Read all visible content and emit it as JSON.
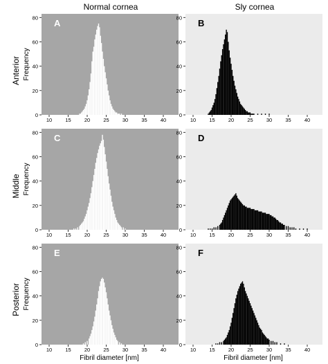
{
  "figure": {
    "col_titles": [
      "Normal cornea",
      "Sly cornea"
    ],
    "row_labels": [
      "Anterior",
      "Middle",
      "Posterior"
    ],
    "ylabel": "Frequency",
    "xlabel": "Fibril diameter [nm]",
    "x_ticks": [
      "10",
      "15",
      "20",
      "25",
      "30",
      "35",
      "40"
    ],
    "y_ticks": [
      "0",
      "20",
      "40",
      "60",
      "80"
    ],
    "colors": {
      "normal_background": "#a6a6a6",
      "normal_bars": "#ffffff",
      "sly_background": "#ebebeb",
      "sly_bars": "#000000"
    }
  },
  "chart_data": [
    {
      "panel": "A",
      "type": "bar",
      "row": "Anterior",
      "column": "Normal cornea",
      "xlim": [
        8,
        44
      ],
      "ylim": [
        0,
        83
      ],
      "bin_width": 0.25,
      "x": [
        18.0,
        18.25,
        18.5,
        18.75,
        19.0,
        19.25,
        19.5,
        19.75,
        20.0,
        20.25,
        20.5,
        20.75,
        21.0,
        21.25,
        21.5,
        21.75,
        22.0,
        22.25,
        22.5,
        22.75,
        23.0,
        23.25,
        23.5,
        23.75,
        24.0,
        24.25,
        24.5,
        24.75,
        25.0,
        25.25,
        25.5,
        25.75,
        26.0,
        26.25,
        26.5,
        26.75,
        27.0,
        27.25,
        27.5,
        27.75,
        28.0,
        28.25,
        28.5,
        28.75,
        29.0
      ],
      "values": [
        1,
        1,
        2,
        3,
        4,
        5,
        7,
        9,
        12,
        16,
        21,
        27,
        34,
        44,
        52,
        56,
        62,
        66,
        70,
        73,
        75,
        72,
        65,
        59,
        52,
        46,
        40,
        35,
        30,
        25,
        20,
        16,
        12,
        9,
        7,
        5,
        4,
        3,
        2,
        2,
        1,
        1,
        1,
        0,
        1
      ]
    },
    {
      "panel": "B",
      "type": "bar",
      "row": "Anterior",
      "column": "Sly cornea",
      "xlim": [
        8,
        44
      ],
      "ylim": [
        0,
        83
      ],
      "bin_width": 0.25,
      "x": [
        14.0,
        14.25,
        14.5,
        14.75,
        15.0,
        15.25,
        15.5,
        15.75,
        16.0,
        16.25,
        16.5,
        16.75,
        17.0,
        17.25,
        17.5,
        17.75,
        18.0,
        18.25,
        18.5,
        18.75,
        19.0,
        19.25,
        19.5,
        19.75,
        20.0,
        20.25,
        20.5,
        20.75,
        21.0,
        21.25,
        21.5,
        21.75,
        22.0,
        22.25,
        22.5,
        22.75,
        23.0,
        23.25,
        23.5,
        23.75,
        24.0,
        24.25,
        24.5,
        24.75,
        25.0,
        25.25,
        25.5,
        25.75,
        26.0,
        27.0,
        28.0,
        29.0,
        30.0
      ],
      "values": [
        1,
        2,
        3,
        4,
        6,
        8,
        10,
        13,
        17,
        22,
        27,
        32,
        38,
        44,
        49,
        54,
        58,
        62,
        66,
        70,
        68,
        60,
        53,
        47,
        42,
        37,
        32,
        28,
        24,
        21,
        18,
        15,
        13,
        11,
        9,
        8,
        7,
        6,
        5,
        4,
        3,
        3,
        2,
        2,
        2,
        1,
        1,
        1,
        1,
        1,
        1,
        1,
        1
      ]
    },
    {
      "panel": "C",
      "type": "bar",
      "row": "Middle",
      "column": "Normal cornea",
      "xlim": [
        8,
        44
      ],
      "ylim": [
        0,
        83
      ],
      "bin_width": 0.25,
      "x": [
        16.5,
        17.0,
        17.5,
        18.0,
        18.25,
        18.5,
        18.75,
        19.0,
        19.25,
        19.5,
        19.75,
        20.0,
        20.25,
        20.5,
        20.75,
        21.0,
        21.25,
        21.5,
        21.75,
        22.0,
        22.25,
        22.5,
        22.75,
        23.0,
        23.25,
        23.5,
        23.75,
        24.0,
        24.25,
        24.5,
        24.75,
        25.0,
        25.25,
        25.5,
        25.75,
        26.0,
        26.25,
        26.5,
        26.75,
        27.0,
        27.25,
        27.5,
        27.75,
        28.0,
        28.25,
        28.5,
        28.75,
        29.0,
        29.5,
        30.0
      ],
      "values": [
        1,
        1,
        2,
        3,
        4,
        5,
        6,
        7,
        9,
        11,
        13,
        16,
        19,
        22,
        26,
        30,
        35,
        40,
        45,
        50,
        55,
        59,
        63,
        66,
        69,
        71,
        73,
        78,
        74,
        68,
        62,
        56,
        50,
        44,
        38,
        33,
        28,
        23,
        19,
        16,
        13,
        10,
        8,
        6,
        5,
        4,
        3,
        2,
        2,
        1
      ]
    },
    {
      "panel": "D",
      "type": "bar",
      "row": "Middle",
      "column": "Sly cornea",
      "xlim": [
        8,
        44
      ],
      "ylim": [
        0,
        83
      ],
      "bin_width": 0.25,
      "x": [
        14.0,
        14.5,
        15.0,
        15.5,
        16.0,
        16.5,
        17.0,
        17.25,
        17.5,
        17.75,
        18.0,
        18.25,
        18.5,
        18.75,
        19.0,
        19.25,
        19.5,
        19.75,
        20.0,
        20.25,
        20.5,
        20.75,
        21.0,
        21.25,
        21.5,
        21.75,
        22.0,
        22.25,
        22.5,
        22.75,
        23.0,
        23.25,
        23.5,
        23.75,
        24.0,
        24.25,
        24.5,
        24.75,
        25.0,
        25.25,
        25.5,
        25.75,
        26.0,
        26.25,
        26.5,
        26.75,
        27.0,
        27.25,
        27.5,
        27.75,
        28.0,
        28.25,
        28.5,
        28.75,
        29.0,
        29.25,
        29.5,
        29.75,
        30.0,
        30.25,
        30.5,
        30.75,
        31.0,
        31.25,
        31.5,
        31.75,
        32.0,
        32.25,
        32.5,
        32.75,
        33.0,
        33.25,
        33.5,
        33.75,
        34.0,
        34.5,
        35.0,
        35.5,
        36.0,
        36.5,
        37.0,
        38.0,
        39.0,
        40.0
      ],
      "values": [
        1,
        1,
        1,
        2,
        2,
        3,
        4,
        5,
        6,
        8,
        10,
        12,
        14,
        16,
        18,
        20,
        22,
        24,
        25,
        26,
        27,
        28,
        29,
        30,
        28,
        26,
        25,
        24,
        23,
        22,
        21,
        20,
        20,
        19,
        19,
        18,
        18,
        18,
        18,
        17,
        17,
        17,
        17,
        16,
        16,
        16,
        16,
        15,
        15,
        15,
        15,
        14,
        14,
        14,
        14,
        13,
        13,
        13,
        13,
        12,
        12,
        11,
        11,
        10,
        10,
        9,
        8,
        8,
        7,
        6,
        6,
        5,
        5,
        4,
        4,
        3,
        3,
        2,
        2,
        2,
        1,
        1,
        1,
        1
      ]
    },
    {
      "panel": "E",
      "type": "bar",
      "row": "Posterior",
      "column": "Normal cornea",
      "xlim": [
        8,
        44
      ],
      "ylim": [
        0,
        83
      ],
      "bin_width": 0.25,
      "x": [
        19.0,
        19.5,
        20.0,
        20.5,
        20.75,
        21.0,
        21.25,
        21.5,
        21.75,
        22.0,
        22.25,
        22.5,
        22.75,
        23.0,
        23.25,
        23.5,
        23.75,
        24.0,
        24.25,
        24.5,
        24.75,
        25.0,
        25.25,
        25.5,
        25.75,
        26.0,
        26.25,
        26.5,
        26.75,
        27.0,
        27.25,
        27.5,
        27.75,
        28.0,
        28.5,
        29.0
      ],
      "values": [
        1,
        2,
        3,
        5,
        7,
        9,
        12,
        15,
        19,
        23,
        28,
        33,
        38,
        44,
        48,
        52,
        54,
        55,
        54,
        51,
        47,
        43,
        38,
        33,
        28,
        24,
        20,
        16,
        13,
        10,
        8,
        6,
        4,
        3,
        2,
        1
      ]
    },
    {
      "panel": "F",
      "type": "bar",
      "row": "Posterior",
      "column": "Sly cornea",
      "xlim": [
        8,
        44
      ],
      "ylim": [
        0,
        83
      ],
      "bin_width": 0.25,
      "x": [
        16.0,
        16.5,
        17.0,
        17.5,
        18.0,
        18.25,
        18.5,
        18.75,
        19.0,
        19.25,
        19.5,
        19.75,
        20.0,
        20.25,
        20.5,
        20.75,
        21.0,
        21.25,
        21.5,
        21.75,
        22.0,
        22.25,
        22.5,
        22.75,
        23.0,
        23.25,
        23.5,
        23.75,
        24.0,
        24.25,
        24.5,
        24.75,
        25.0,
        25.25,
        25.5,
        25.75,
        26.0,
        26.25,
        26.5,
        26.75,
        27.0,
        27.25,
        27.5,
        27.75,
        28.0,
        28.25,
        28.5,
        28.75,
        29.0,
        29.25,
        29.5,
        29.75,
        30.0,
        30.5,
        31.0,
        31.5,
        32.0,
        33.0,
        34.0
      ],
      "values": [
        1,
        1,
        2,
        2,
        3,
        4,
        5,
        6,
        8,
        10,
        12,
        15,
        18,
        22,
        26,
        30,
        34,
        38,
        41,
        44,
        46,
        48,
        50,
        51,
        52,
        50,
        47,
        44,
        42,
        40,
        38,
        36,
        34,
        32,
        30,
        28,
        26,
        24,
        22,
        20,
        18,
        16,
        14,
        13,
        12,
        10,
        9,
        8,
        7,
        6,
        5,
        5,
        4,
        3,
        3,
        2,
        2,
        1,
        1
      ]
    }
  ]
}
